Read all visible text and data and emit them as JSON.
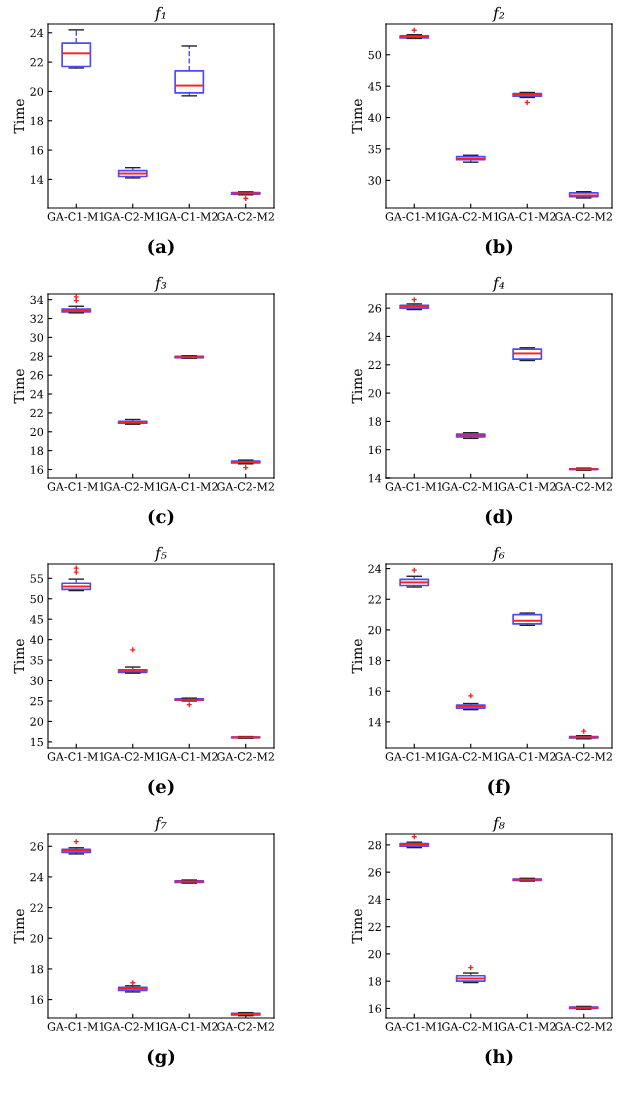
{
  "chart_data": [
    {
      "type": "box",
      "title": "f₁",
      "ylabel": "Time",
      "categories": [
        "GA-C1-M1",
        "GA-C2-M1",
        "GA-C1-M2",
        "GA-C2-M2"
      ],
      "ylim": [
        12.05,
        24.6
      ],
      "yticks": [
        14,
        16,
        18,
        20,
        22,
        24
      ],
      "grid": false,
      "annotations": [
        "(a)"
      ],
      "series": [
        {
          "color": "#4a4aff",
          "boxes": [
            {
              "low": 21.6,
              "q1": 21.7,
              "median": 22.6,
              "q3": 23.3,
              "high": 24.2
            },
            {
              "low": 14.1,
              "q1": 14.2,
              "median": 14.4,
              "q3": 14.6,
              "high": 14.8
            },
            {
              "low": 19.7,
              "q1": 19.9,
              "median": 20.4,
              "q3": 21.4,
              "high": 23.1
            },
            {
              "low": 12.95,
              "q1": 13.0,
              "median": 13.05,
              "q3": 13.1,
              "high": 13.15,
              "outliers": [
                12.7
              ]
            }
          ]
        }
      ]
    },
    {
      "type": "box",
      "title": "f₂",
      "ylabel": "Time",
      "categories": [
        "GA-C1-M1",
        "GA-C2-M1",
        "GA-C1-M2",
        "GA-C2-M2"
      ],
      "ylim": [
        25.6,
        54.9
      ],
      "yticks": [
        30,
        35,
        40,
        45,
        50
      ],
      "grid": false,
      "annotations": [
        "(b)"
      ],
      "series": [
        {
          "color": "#4a4aff",
          "boxes": [
            {
              "low": 52.6,
              "q1": 52.7,
              "median": 52.9,
              "q3": 53.0,
              "high": 53.2,
              "outliers": [
                53.9
              ]
            },
            {
              "low": 32.9,
              "q1": 33.3,
              "median": 33.5,
              "q3": 33.8,
              "high": 34.0
            },
            {
              "low": 43.2,
              "q1": 43.4,
              "median": 43.6,
              "q3": 43.8,
              "high": 44.0,
              "outliers": [
                42.4
              ]
            },
            {
              "low": 27.2,
              "q1": 27.4,
              "median": 27.6,
              "q3": 28.0,
              "high": 28.2
            }
          ]
        }
      ]
    },
    {
      "type": "box",
      "title": "f₃",
      "ylabel": "Time",
      "categories": [
        "GA-C1-M1",
        "GA-C2-M1",
        "GA-C1-M2",
        "GA-C2-M2"
      ],
      "ylim": [
        15.1,
        34.6
      ],
      "yticks": [
        16,
        18,
        20,
        22,
        24,
        26,
        28,
        30,
        32,
        34
      ],
      "grid": false,
      "annotations": [
        "(c)"
      ],
      "series": [
        {
          "color": "#4a4aff",
          "boxes": [
            {
              "low": 32.6,
              "q1": 32.7,
              "median": 32.8,
              "q3": 33.0,
              "high": 33.3,
              "outliers": [
                33.9,
                34.3
              ]
            },
            {
              "low": 20.8,
              "q1": 20.9,
              "median": 21.0,
              "q3": 21.1,
              "high": 21.3
            },
            {
              "low": 27.8,
              "q1": 27.85,
              "median": 27.9,
              "q3": 28.0,
              "high": 28.05
            },
            {
              "low": 16.6,
              "q1": 16.7,
              "median": 16.8,
              "q3": 16.9,
              "high": 17.0,
              "outliers": [
                16.2
              ]
            }
          ]
        }
      ]
    },
    {
      "type": "box",
      "title": "f₄",
      "ylabel": "Time",
      "categories": [
        "GA-C1-M1",
        "GA-C2-M1",
        "GA-C1-M2",
        "GA-C2-M2"
      ],
      "ylim": [
        14,
        27
      ],
      "yticks": [
        14,
        16,
        18,
        20,
        22,
        24,
        26
      ],
      "grid": false,
      "annotations": [
        "(d)"
      ],
      "series": [
        {
          "color": "#4a4aff",
          "boxes": [
            {
              "low": 25.9,
              "q1": 26.0,
              "median": 26.1,
              "q3": 26.2,
              "high": 26.3,
              "outliers": [
                26.6
              ]
            },
            {
              "low": 16.8,
              "q1": 16.9,
              "median": 17.0,
              "q3": 17.1,
              "high": 17.2
            },
            {
              "low": 22.3,
              "q1": 22.4,
              "median": 22.8,
              "q3": 23.1,
              "high": 23.2
            },
            {
              "low": 14.55,
              "q1": 14.6,
              "median": 14.62,
              "q3": 14.65,
              "high": 14.7
            }
          ]
        }
      ]
    },
    {
      "type": "box",
      "title": "f₅",
      "ylabel": "Time",
      "categories": [
        "GA-C1-M1",
        "GA-C2-M1",
        "GA-C1-M2",
        "GA-C2-M2"
      ],
      "ylim": [
        13.5,
        58.5
      ],
      "yticks": [
        15,
        20,
        25,
        30,
        35,
        40,
        45,
        50,
        55
      ],
      "grid": false,
      "annotations": [
        "(e)"
      ],
      "series": [
        {
          "color": "#4a4aff",
          "boxes": [
            {
              "low": 52.0,
              "q1": 52.3,
              "median": 53.0,
              "q3": 53.8,
              "high": 54.8,
              "outliers": [
                56.5,
                57.5
              ]
            },
            {
              "low": 31.8,
              "q1": 32.0,
              "median": 32.3,
              "q3": 32.6,
              "high": 33.3,
              "outliers": [
                37.5
              ]
            },
            {
              "low": 25.0,
              "q1": 25.2,
              "median": 25.3,
              "q3": 25.5,
              "high": 25.7,
              "outliers": [
                24.1
              ]
            },
            {
              "low": 15.9,
              "q1": 16.0,
              "median": 16.1,
              "q3": 16.2,
              "high": 16.3
            }
          ]
        }
      ]
    },
    {
      "type": "box",
      "title": "f₆",
      "ylabel": "Time",
      "categories": [
        "GA-C1-M1",
        "GA-C2-M1",
        "GA-C1-M2",
        "GA-C2-M2"
      ],
      "ylim": [
        12.3,
        24.3
      ],
      "yticks": [
        14,
        16,
        18,
        20,
        22,
        24
      ],
      "grid": false,
      "annotations": [
        "(f)"
      ],
      "series": [
        {
          "color": "#4a4aff",
          "boxes": [
            {
              "low": 22.8,
              "q1": 22.9,
              "median": 23.1,
              "q3": 23.3,
              "high": 23.5,
              "outliers": [
                23.9
              ]
            },
            {
              "low": 14.8,
              "q1": 14.9,
              "median": 15.0,
              "q3": 15.1,
              "high": 15.2,
              "outliers": [
                15.7
              ]
            },
            {
              "low": 20.3,
              "q1": 20.4,
              "median": 20.6,
              "q3": 21.0,
              "high": 21.1
            },
            {
              "low": 12.9,
              "q1": 12.95,
              "median": 13.0,
              "q3": 13.05,
              "high": 13.1,
              "outliers": [
                13.4
              ]
            }
          ]
        }
      ]
    },
    {
      "type": "box",
      "title": "f₇",
      "ylabel": "Time",
      "categories": [
        "GA-C1-M1",
        "GA-C2-M1",
        "GA-C1-M2",
        "GA-C2-M2"
      ],
      "ylim": [
        14.8,
        26.8
      ],
      "yticks": [
        16,
        18,
        20,
        22,
        24,
        26
      ],
      "grid": false,
      "annotations": [
        "(g)"
      ],
      "series": [
        {
          "color": "#4a4aff",
          "boxes": [
            {
              "low": 25.5,
              "q1": 25.6,
              "median": 25.7,
              "q3": 25.8,
              "high": 25.9,
              "outliers": [
                26.3
              ]
            },
            {
              "low": 16.5,
              "q1": 16.6,
              "median": 16.7,
              "q3": 16.8,
              "high": 16.9,
              "outliers": [
                17.1
              ]
            },
            {
              "low": 23.6,
              "q1": 23.65,
              "median": 23.7,
              "q3": 23.75,
              "high": 23.8
            },
            {
              "low": 14.95,
              "q1": 15.0,
              "median": 15.05,
              "q3": 15.1,
              "high": 15.15
            }
          ]
        }
      ]
    },
    {
      "type": "box",
      "title": "f₈",
      "ylabel": "Time",
      "categories": [
        "GA-C1-M1",
        "GA-C2-M1",
        "GA-C1-M2",
        "GA-C2-M2"
      ],
      "ylim": [
        15.3,
        28.8
      ],
      "yticks": [
        16,
        18,
        20,
        22,
        24,
        26,
        28
      ],
      "grid": false,
      "annotations": [
        "(h)"
      ],
      "series": [
        {
          "color": "#4a4aff",
          "boxes": [
            {
              "low": 27.8,
              "q1": 27.9,
              "median": 28.0,
              "q3": 28.1,
              "high": 28.2,
              "outliers": [
                28.6
              ]
            },
            {
              "low": 17.9,
              "q1": 18.0,
              "median": 18.2,
              "q3": 18.4,
              "high": 18.6,
              "outliers": [
                19.0
              ]
            },
            {
              "low": 25.35,
              "q1": 25.4,
              "median": 25.45,
              "q3": 25.5,
              "high": 25.55
            },
            {
              "low": 15.95,
              "q1": 16.0,
              "median": 16.05,
              "q3": 16.1,
              "high": 16.15
            }
          ]
        }
      ]
    }
  ]
}
